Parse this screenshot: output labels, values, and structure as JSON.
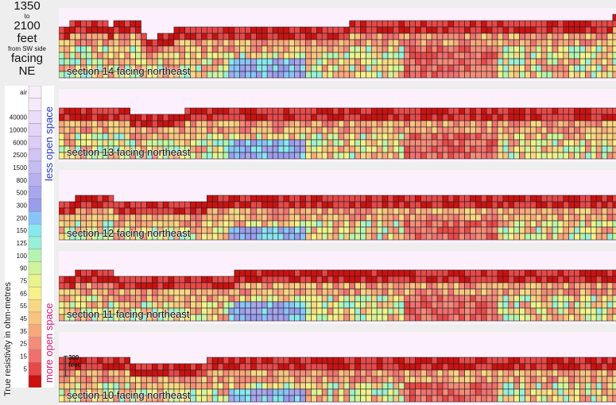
{
  "header": {
    "from_depth": "1350",
    "to_word": "to",
    "to_depth": "2100",
    "unit": "feet",
    "from_side": "from SW side",
    "facing_word": "facing",
    "facing_dir": "NE"
  },
  "legend": {
    "ylabel": "True resistivity in ohm-metres",
    "less_label": "less open space",
    "more_label": "more open space",
    "entries": [
      {
        "label": "air",
        "color": "#f8eef8"
      },
      {
        "label": "",
        "color": "#f4eafa"
      },
      {
        "label": "40000",
        "color": "#ecdcf8"
      },
      {
        "label": "10000",
        "color": "#e4d4f8"
      },
      {
        "label": "6000",
        "color": "#dcccf6"
      },
      {
        "label": "2500",
        "color": "#d0c4f4"
      },
      {
        "label": "1500",
        "color": "#c4bcf2"
      },
      {
        "label": "800",
        "color": "#b8b0f0"
      },
      {
        "label": "500",
        "color": "#a8a6ee"
      },
      {
        "label": "300",
        "color": "#9a9cec"
      },
      {
        "label": "200",
        "color": "#88c4f8"
      },
      {
        "label": "150",
        "color": "#88e8f0"
      },
      {
        "label": "125",
        "color": "#98f0d8"
      },
      {
        "label": "100",
        "color": "#b4f4b0"
      },
      {
        "label": "90",
        "color": "#d0f49c"
      },
      {
        "label": "75",
        "color": "#e8f48c"
      },
      {
        "label": "65",
        "color": "#f8f088"
      },
      {
        "label": "55",
        "color": "#f8d884"
      },
      {
        "label": "45",
        "color": "#f8c480"
      },
      {
        "label": "35",
        "color": "#f8a87c"
      },
      {
        "label": "25",
        "color": "#f48c78"
      },
      {
        "label": "15",
        "color": "#f07070"
      },
      {
        "label": "5",
        "color": "#e84848"
      },
      {
        "label": "",
        "color": "#cc1111"
      }
    ]
  },
  "scale_bar": {
    "value": "300",
    "unit": "feet"
  },
  "chart_data": {
    "type": "heatmap",
    "sections": [
      {
        "title": "section 14 facing northeast",
        "top_profile": [
          8,
          8,
          9,
          9,
          9,
          9,
          9,
          9,
          9,
          8,
          9,
          9,
          9,
          9,
          9,
          7,
          6,
          6,
          7,
          7,
          7,
          8,
          8,
          8,
          8,
          8,
          8,
          8,
          8,
          8,
          8,
          8,
          8,
          8,
          8,
          8,
          8,
          8,
          8,
          8,
          8,
          8,
          8,
          8,
          8,
          8,
          8,
          8,
          8,
          8,
          8,
          8,
          8,
          9,
          9,
          9,
          9,
          9,
          9,
          9,
          9,
          9,
          9,
          9,
          9,
          9,
          9,
          9,
          9,
          9,
          9,
          9,
          9,
          9,
          9,
          9,
          9,
          9,
          9,
          9,
          9,
          9,
          9,
          9,
          9,
          9,
          9,
          9,
          9,
          9,
          9,
          9,
          9,
          9,
          9,
          9,
          9,
          9,
          9,
          9,
          9,
          10
        ]
      },
      {
        "title": "section 13 facing northeast",
        "top_profile": [
          8,
          8,
          8,
          8,
          8,
          8,
          8,
          8,
          8,
          8,
          8,
          8,
          8,
          7,
          7,
          7,
          7,
          7,
          7,
          7,
          7,
          7,
          7,
          8,
          8,
          8,
          8,
          8,
          8,
          8,
          8,
          8,
          8,
          8,
          8,
          8,
          8,
          8,
          8,
          8,
          8,
          8,
          8,
          8,
          8,
          8,
          8,
          8,
          8,
          8,
          8,
          8,
          8,
          8,
          8,
          8,
          8,
          8,
          8,
          8,
          8,
          8,
          8,
          8,
          8,
          8,
          8,
          8,
          8,
          8,
          8,
          8,
          8,
          8,
          8,
          8,
          8,
          8,
          8,
          8,
          8,
          8,
          8,
          8,
          8,
          8,
          8,
          8,
          8,
          8,
          8,
          8,
          8,
          8,
          8,
          8,
          8,
          8,
          8,
          8,
          8,
          8
        ]
      },
      {
        "title": "section 12 facing northeast",
        "top_profile": [
          6,
          6,
          6,
          7,
          7,
          7,
          7,
          7,
          7,
          7,
          6,
          6,
          6,
          6,
          6,
          6,
          6,
          6,
          6,
          6,
          6,
          6,
          6,
          6,
          6,
          6,
          6,
          7,
          7,
          7,
          7,
          7,
          7,
          7,
          7,
          7,
          7,
          7,
          7,
          7,
          7,
          7,
          7,
          7,
          7,
          7,
          7,
          7,
          7,
          7,
          7,
          7,
          7,
          7,
          7,
          7,
          7,
          7,
          7,
          7,
          7,
          7,
          7,
          7,
          7,
          7,
          7,
          7,
          7,
          7,
          7,
          7,
          7,
          7,
          7,
          7,
          7,
          7,
          7,
          7,
          7,
          7,
          7,
          7,
          7,
          7,
          7,
          7,
          7,
          7,
          7,
          7,
          7,
          7,
          7,
          7,
          7,
          7,
          7,
          7,
          7,
          7
        ]
      },
      {
        "title": "section 11 facing northeast",
        "top_profile": [
          7,
          7,
          7,
          8,
          8,
          8,
          8,
          8,
          8,
          8,
          7,
          7,
          7,
          7,
          7,
          7,
          7,
          7,
          7,
          7,
          7,
          7,
          7,
          7,
          7,
          7,
          7,
          7,
          7,
          7,
          7,
          7,
          8,
          8,
          8,
          8,
          8,
          8,
          8,
          8,
          8,
          8,
          8,
          8,
          8,
          8,
          8,
          8,
          8,
          8,
          8,
          8,
          8,
          8,
          8,
          8,
          8,
          8,
          8,
          8,
          8,
          8,
          8,
          8,
          8,
          8,
          8,
          8,
          8,
          8,
          8,
          8,
          8,
          8,
          8,
          8,
          8,
          8,
          8,
          8,
          8,
          8,
          8,
          8,
          8,
          8,
          8,
          8,
          8,
          8,
          8,
          8,
          8,
          8,
          8,
          8,
          8,
          8,
          8,
          8,
          8,
          8
        ]
      },
      {
        "title": "section 10 facing northeast",
        "top_profile": [
          7,
          7,
          7,
          7,
          7,
          7,
          7,
          7,
          7,
          7,
          7,
          7,
          7,
          6,
          6,
          6,
          6,
          6,
          6,
          6,
          6,
          6,
          6,
          6,
          6,
          6,
          6,
          7,
          7,
          7,
          7,
          7,
          7,
          7,
          7,
          7,
          7,
          7,
          7,
          7,
          7,
          7,
          7,
          7,
          7,
          7,
          7,
          7,
          7,
          7,
          7,
          7,
          7,
          7,
          7,
          7,
          7,
          7,
          7,
          7,
          7,
          7,
          7,
          7,
          7,
          7,
          7,
          7,
          7,
          7,
          7,
          7,
          7,
          7,
          7,
          7,
          7,
          7,
          7,
          7,
          7,
          7,
          7,
          7,
          7,
          7,
          7,
          7,
          7,
          7,
          7,
          7,
          7,
          7,
          7,
          7,
          7,
          7,
          7,
          7,
          7,
          7
        ]
      }
    ]
  }
}
